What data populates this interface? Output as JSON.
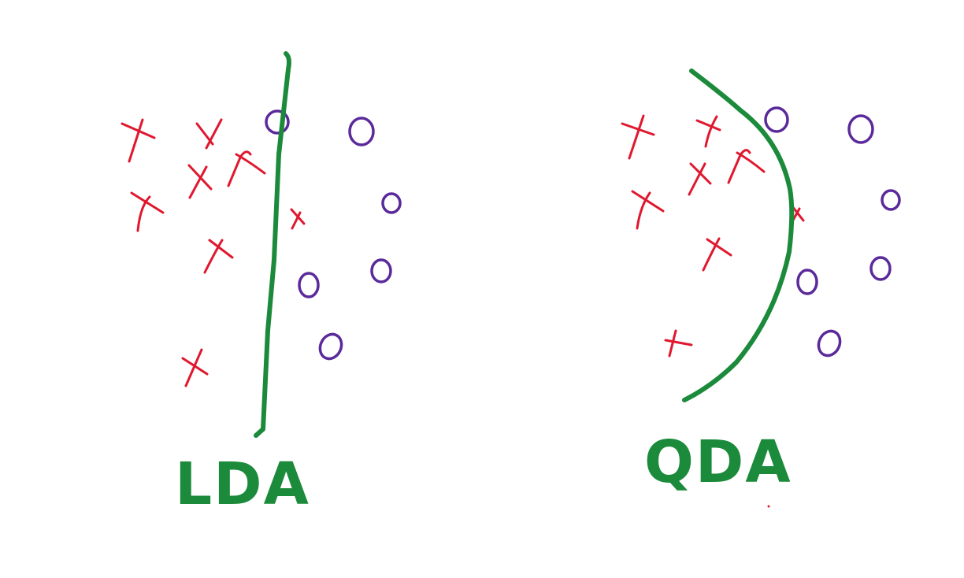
{
  "colors": {
    "class_x": "#e0182f",
    "class_o": "#5b2a9a",
    "boundary": "#1b8a3a",
    "background": "#ffffff"
  },
  "panels": [
    {
      "label": "LDA",
      "boundary_type": "linear"
    },
    {
      "label": "QDA",
      "boundary_type": "quadratic"
    }
  ]
}
